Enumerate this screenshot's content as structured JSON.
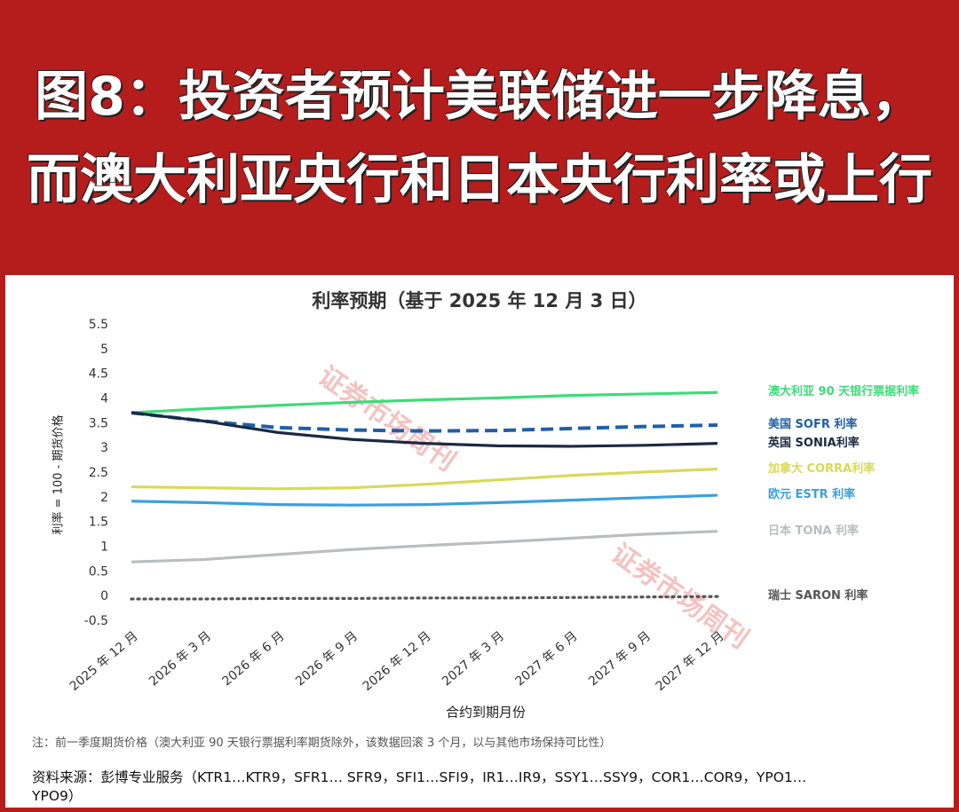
{
  "header": {
    "title": "图8：投资者预计美联储进一步降息，而澳大利亚央行和日本央行利率或上行"
  },
  "chart_data": {
    "type": "line",
    "title": "利率预期（基于 2025 年 12 月 3 日）",
    "y_label": "利率 = 100 - 期货价格",
    "x_label": "合约到期月份",
    "watermark": "证券市场周刊",
    "categories": [
      "2025 年 12 月",
      "2026 年 3 月",
      "2026 年 6 月",
      "2026 年 9 月",
      "2026 年 12 月",
      "2027 年 3 月",
      "2027 年 6 月",
      "2027 年 9 月",
      "2027 年 12 月"
    ],
    "series": [
      {
        "name": "澳大利亚 90 天银行票据利率",
        "color": "#3ddc78",
        "style": "solid",
        "values": [
          3.72,
          3.8,
          3.87,
          3.93,
          3.98,
          4.02,
          4.07,
          4.1,
          4.13
        ]
      },
      {
        "name": "美国 SOFR 利率",
        "color": "#1f5fa8",
        "style": "dashed",
        "values": [
          3.72,
          3.55,
          3.42,
          3.37,
          3.35,
          3.36,
          3.4,
          3.44,
          3.47
        ]
      },
      {
        "name": "英国 SONIA利率",
        "color": "#1b2a41",
        "style": "solid",
        "values": [
          3.72,
          3.55,
          3.32,
          3.18,
          3.1,
          3.05,
          3.04,
          3.06,
          3.1
        ]
      },
      {
        "name": "加拿大 CORRA利率",
        "color": "#d9d957",
        "style": "solid",
        "values": [
          2.22,
          2.2,
          2.18,
          2.2,
          2.27,
          2.36,
          2.45,
          2.52,
          2.58
        ]
      },
      {
        "name": "欧元 ESTR 利率",
        "color": "#3aa0dc",
        "style": "solid",
        "values": [
          1.93,
          1.9,
          1.86,
          1.85,
          1.86,
          1.9,
          1.95,
          2.0,
          2.05
        ]
      },
      {
        "name": "日本 TONA 利率",
        "color": "#b9bdc0",
        "style": "solid",
        "values": [
          0.7,
          0.75,
          0.85,
          0.95,
          1.03,
          1.1,
          1.18,
          1.26,
          1.32
        ]
      },
      {
        "name": "瑞士 SARON 利率",
        "color": "#555555",
        "style": "dotted",
        "values": [
          -0.05,
          -0.05,
          -0.04,
          -0.04,
          -0.03,
          -0.03,
          -0.02,
          -0.01,
          0.0
        ]
      }
    ],
    "ylim": [
      -0.5,
      5.5
    ],
    "yticks": [
      -0.5,
      0,
      0.5,
      1,
      1.5,
      2,
      2.5,
      3,
      3.5,
      4,
      4.5,
      5,
      5.5
    ],
    "grid": false,
    "note": "注：前一季度期货价格（澳大利亚 90 天银行票据利率期货除外，该数据回滚 3 个月，以与其他市场保持可比性）",
    "source": "资料来源：彭博专业服务（KTR1…KTR9，SFR1… SFR9，SFI1…SFI9，IR1…IR9，SSY1…SSY9，COR1…COR9，YPO1…YPO9）"
  }
}
